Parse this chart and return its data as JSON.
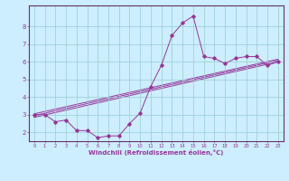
{
  "xlabel": "Windchill (Refroidissement éolien,°C)",
  "bg_color": "#cceeff",
  "grid_color": "#99cccc",
  "line_color": "#993399",
  "spine_color": "#663366",
  "xlim": [
    -0.5,
    23.5
  ],
  "ylim": [
    1.5,
    9.2
  ],
  "yticks": [
    2,
    3,
    4,
    5,
    6,
    7,
    8
  ],
  "xticks": [
    0,
    1,
    2,
    3,
    4,
    5,
    6,
    7,
    8,
    9,
    10,
    11,
    12,
    13,
    14,
    15,
    16,
    17,
    18,
    19,
    20,
    21,
    22,
    23
  ],
  "scatter_x": [
    0,
    1,
    2,
    3,
    4,
    5,
    6,
    7,
    8,
    9,
    10,
    11,
    12,
    13,
    14,
    15,
    16,
    17,
    18,
    19,
    20,
    21,
    22,
    23
  ],
  "scatter_y": [
    3.0,
    3.0,
    2.6,
    2.7,
    2.1,
    2.1,
    1.7,
    1.8,
    1.8,
    2.5,
    3.1,
    4.6,
    5.8,
    7.5,
    8.2,
    8.6,
    6.3,
    6.2,
    5.9,
    6.2,
    6.3,
    6.3,
    5.8,
    6.0
  ],
  "reg_lines": [
    [
      [
        0,
        23
      ],
      [
        2.85,
        6.0
      ]
    ],
    [
      [
        0,
        23
      ],
      [
        3.05,
        6.15
      ]
    ],
    [
      [
        0,
        23
      ],
      [
        2.95,
        6.08
      ]
    ]
  ]
}
